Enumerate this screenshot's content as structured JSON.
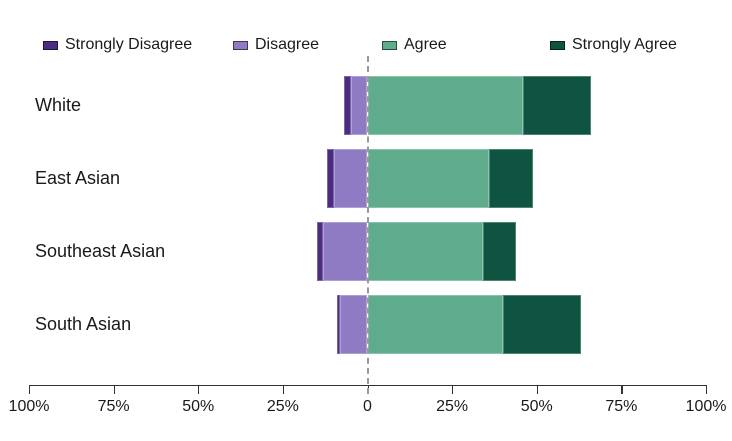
{
  "chart_data": {
    "type": "bar",
    "variant": "diverging-stacked-horizontal",
    "title": "",
    "categories": [
      "White",
      "East Asian",
      "Southeast Asian",
      "South Asian"
    ],
    "series": [
      {
        "name": "Strongly Disagree",
        "direction": "negative",
        "stack_order": 2,
        "color": "#4B2C82",
        "values": [
          2,
          2,
          2,
          1
        ]
      },
      {
        "name": "Disagree",
        "direction": "negative",
        "stack_order": 1,
        "color": "#8F7BC4",
        "values": [
          5,
          10,
          13,
          8
        ]
      },
      {
        "name": "Agree",
        "direction": "positive",
        "stack_order": 1,
        "color": "#5FAC8C",
        "values": [
          46,
          36,
          34,
          40
        ]
      },
      {
        "name": "Strongly Agree",
        "direction": "positive",
        "stack_order": 2,
        "color": "#0E5441",
        "values": [
          20,
          13,
          10,
          23
        ]
      }
    ],
    "x_axis": {
      "range": [
        -100,
        100
      ],
      "ticks": [
        {
          "value": -100,
          "label": "100%"
        },
        {
          "value": -75,
          "label": "75%"
        },
        {
          "value": -50,
          "label": "50%"
        },
        {
          "value": -25,
          "label": "25%"
        },
        {
          "value": 0,
          "label": "0"
        },
        {
          "value": 25,
          "label": "25%"
        },
        {
          "value": 50,
          "label": "50%"
        },
        {
          "value": 75,
          "label": "75%"
        },
        {
          "value": 100,
          "label": "100%"
        }
      ]
    },
    "zero_line": true,
    "legend_position": "top",
    "grid": false
  },
  "colors": {
    "axis": "#333333",
    "zero_line": "#999999",
    "text": "#1a1a1a",
    "background": "#ffffff"
  }
}
